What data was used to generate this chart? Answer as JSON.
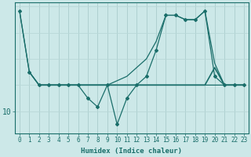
{
  "xlabel": "Humidex (Indice chaleur)",
  "background_color": "#cce8e8",
  "grid_color_v": "#aacccc",
  "grid_color_h": "#b8d8d8",
  "line_color": "#1a6e6a",
  "xlim": [
    -0.5,
    23.5
  ],
  "ylim": [
    7.5,
    22.5
  ],
  "ytick_values": [
    10
  ],
  "ytick_labels": [
    "10"
  ],
  "xtick_values": [
    0,
    1,
    2,
    3,
    4,
    5,
    6,
    7,
    8,
    9,
    10,
    11,
    12,
    13,
    14,
    15,
    16,
    17,
    18,
    19,
    20,
    21,
    22,
    23
  ],
  "series1_x": [
    0,
    1,
    2,
    3,
    4,
    5,
    6,
    7,
    8,
    9,
    10,
    11,
    12,
    13,
    14,
    15,
    16,
    17,
    18,
    19,
    20,
    21,
    22,
    23
  ],
  "series1_y": [
    21.5,
    14.5,
    13,
    13,
    13,
    13,
    13,
    13,
    13,
    13,
    13,
    13,
    13,
    13,
    13,
    13,
    13,
    13,
    13,
    13,
    13,
    13,
    13,
    13
  ],
  "series2_x": [
    0,
    1,
    2,
    3,
    4,
    5,
    6,
    7,
    8,
    9,
    10,
    11,
    12,
    13,
    14,
    15,
    16,
    17,
    18,
    19,
    20,
    21,
    22,
    23
  ],
  "series2_y": [
    21.5,
    14.5,
    13.0,
    13.0,
    13.0,
    13.0,
    13.0,
    11.5,
    10.5,
    13.0,
    8.5,
    11.5,
    13.0,
    14.0,
    17.0,
    21.0,
    21.0,
    20.5,
    20.5,
    21.5,
    14.0,
    13.0,
    13.0,
    13.0
  ],
  "series3_x": [
    1,
    2,
    3,
    4,
    5,
    6,
    7,
    8,
    9,
    10,
    11,
    12,
    13,
    14,
    15,
    16,
    17,
    18,
    19,
    20,
    21,
    22,
    23
  ],
  "series3_y": [
    14.5,
    13.0,
    13.0,
    13.0,
    13.0,
    13.0,
    13.0,
    13.0,
    13.0,
    13.5,
    14.0,
    15.0,
    16.0,
    18.0,
    21.0,
    21.0,
    20.5,
    20.5,
    21.5,
    15.5,
    13.0,
    13.0,
    13.0
  ],
  "series4_x": [
    2,
    3,
    4,
    5,
    6,
    7,
    8,
    9,
    10,
    11,
    12,
    13,
    14,
    15,
    16,
    17,
    18,
    19,
    20,
    21,
    22,
    23
  ],
  "series4_y": [
    13.0,
    13.0,
    13.0,
    13.0,
    13.0,
    13.0,
    13.0,
    13.0,
    13.0,
    13.0,
    13.0,
    13.0,
    13.0,
    13.0,
    13.0,
    13.0,
    13.0,
    13.0,
    15.0,
    13.0,
    13.0,
    13.0
  ]
}
